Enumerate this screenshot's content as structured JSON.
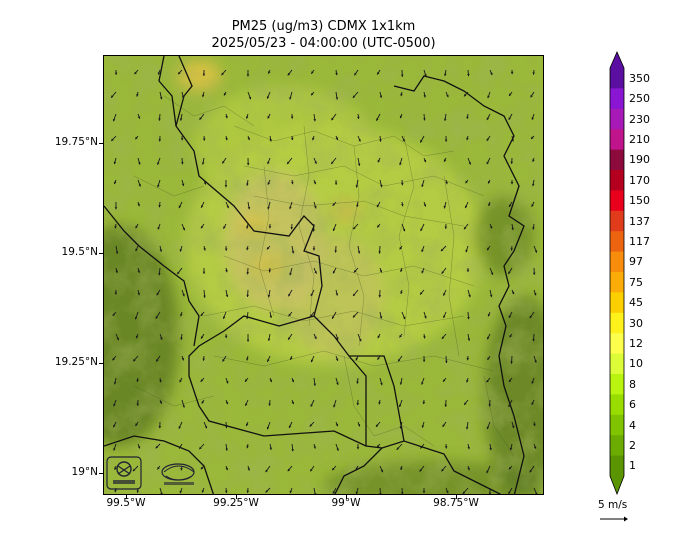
{
  "title": {
    "line1": "PM25 (ug/m3) CDMX 1x1km",
    "line2": "2025/05/23 - 04:00:00 (UTC-0500)"
  },
  "axes": {
    "y_ticks": [
      "19.75°N",
      "19.5°N",
      "19.25°N",
      "19°N"
    ],
    "x_ticks": [
      "99.5°W",
      "99.25°W",
      "99°W",
      "98.75°W"
    ]
  },
  "colorbar": {
    "labels": [
      "350",
      "250",
      "230",
      "210",
      "190",
      "170",
      "150",
      "137",
      "117",
      "97",
      "75",
      "45",
      "30",
      "12",
      "10",
      "8",
      "6",
      "4",
      "2",
      "1"
    ],
    "colors": [
      "#5a0fa0",
      "#8a16d4",
      "#a81ab8",
      "#c0148c",
      "#8c0a3c",
      "#b4001e",
      "#e8001c",
      "#e03c1c",
      "#ec6410",
      "#f88c0c",
      "#fcac08",
      "#fcd000",
      "#fff21c",
      "#fcff4c",
      "#dcfc38",
      "#b8f410",
      "#98dc00",
      "#80c400",
      "#6cac00",
      "#5a9400"
    ]
  },
  "map_colors": {
    "base": "#9ab83a",
    "light": "#b7cf45",
    "dark": "#5e7a22",
    "tan": "#c9c06a",
    "yellow": "#d9c145"
  },
  "wind_key": {
    "label": "5 m/s"
  },
  "logos": {
    "left": "SEDEMA",
    "right": "CDMX"
  }
}
